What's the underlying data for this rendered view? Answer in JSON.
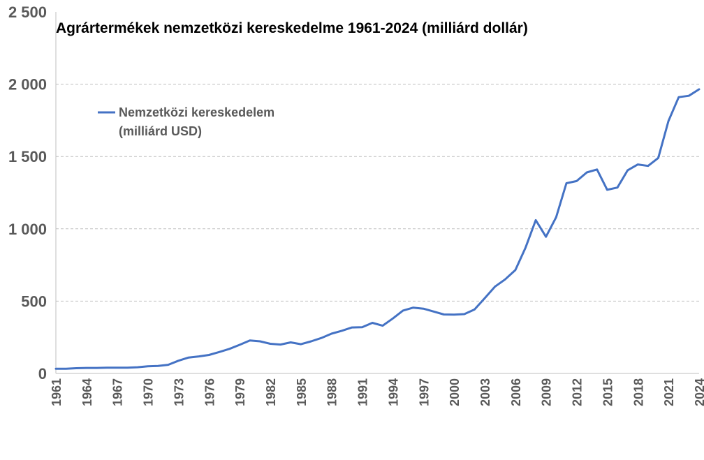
{
  "chart_data": {
    "type": "line",
    "title": "Agrártermékek nemzetközi kereskedelme 1961-2024  (milliárd dollár)",
    "xlabel": "",
    "ylabel": "",
    "xlim": [
      1961,
      2024
    ],
    "ylim": [
      0,
      2500
    ],
    "yticks": [
      0,
      500,
      1000,
      1500,
      2000,
      2500
    ],
    "ytick_labels": [
      "0",
      "500",
      "1 000",
      "1 500",
      "2 000",
      "2 500"
    ],
    "xticks": [
      1961,
      1964,
      1967,
      1970,
      1973,
      1976,
      1979,
      1982,
      1985,
      1988,
      1991,
      1994,
      1997,
      2000,
      2003,
      2006,
      2009,
      2012,
      2015,
      2018,
      2021,
      2024
    ],
    "xtick_labels": [
      "1961",
      "1964",
      "1967",
      "1970",
      "1973",
      "1976",
      "1979",
      "1982",
      "1985",
      "1988",
      "1991",
      "1994",
      "1997",
      "2000",
      "2003",
      "2006",
      "2009",
      "2012",
      "2015",
      "2018",
      "2021",
      "2024"
    ],
    "grid": "horizontal-dashed",
    "legend": "top-left",
    "series": [
      {
        "name": "Nemzetközi kereskedelem (milliárd USD)",
        "legend_lines": [
          "Nemzetközi kereskedelem",
          "(milliárd USD)"
        ],
        "color": "#4472c4",
        "x": [
          1961,
          1962,
          1963,
          1964,
          1965,
          1966,
          1967,
          1968,
          1969,
          1970,
          1971,
          1972,
          1973,
          1974,
          1975,
          1976,
          1977,
          1978,
          1979,
          1980,
          1981,
          1982,
          1983,
          1984,
          1985,
          1986,
          1987,
          1988,
          1989,
          1990,
          1991,
          1992,
          1993,
          1994,
          1995,
          1996,
          1997,
          1998,
          1999,
          2000,
          2001,
          2002,
          2003,
          2004,
          2005,
          2006,
          2007,
          2008,
          2009,
          2010,
          2011,
          2012,
          2013,
          2014,
          2015,
          2016,
          2017,
          2018,
          2019,
          2020,
          2021,
          2022,
          2023,
          2024
        ],
        "values": [
          33,
          33,
          36,
          38,
          38,
          40,
          40,
          40,
          43,
          49,
          52,
          60,
          88,
          110,
          118,
          128,
          148,
          170,
          198,
          228,
          222,
          205,
          200,
          215,
          202,
          222,
          245,
          275,
          295,
          318,
          320,
          350,
          330,
          380,
          435,
          455,
          448,
          428,
          408,
          407,
          410,
          442,
          520,
          600,
          650,
          715,
          870,
          1060,
          945,
          1080,
          1315,
          1330,
          1390,
          1410,
          1270,
          1285,
          1405,
          1445,
          1435,
          1490,
          1745,
          1910,
          1920,
          1965
        ]
      }
    ]
  }
}
